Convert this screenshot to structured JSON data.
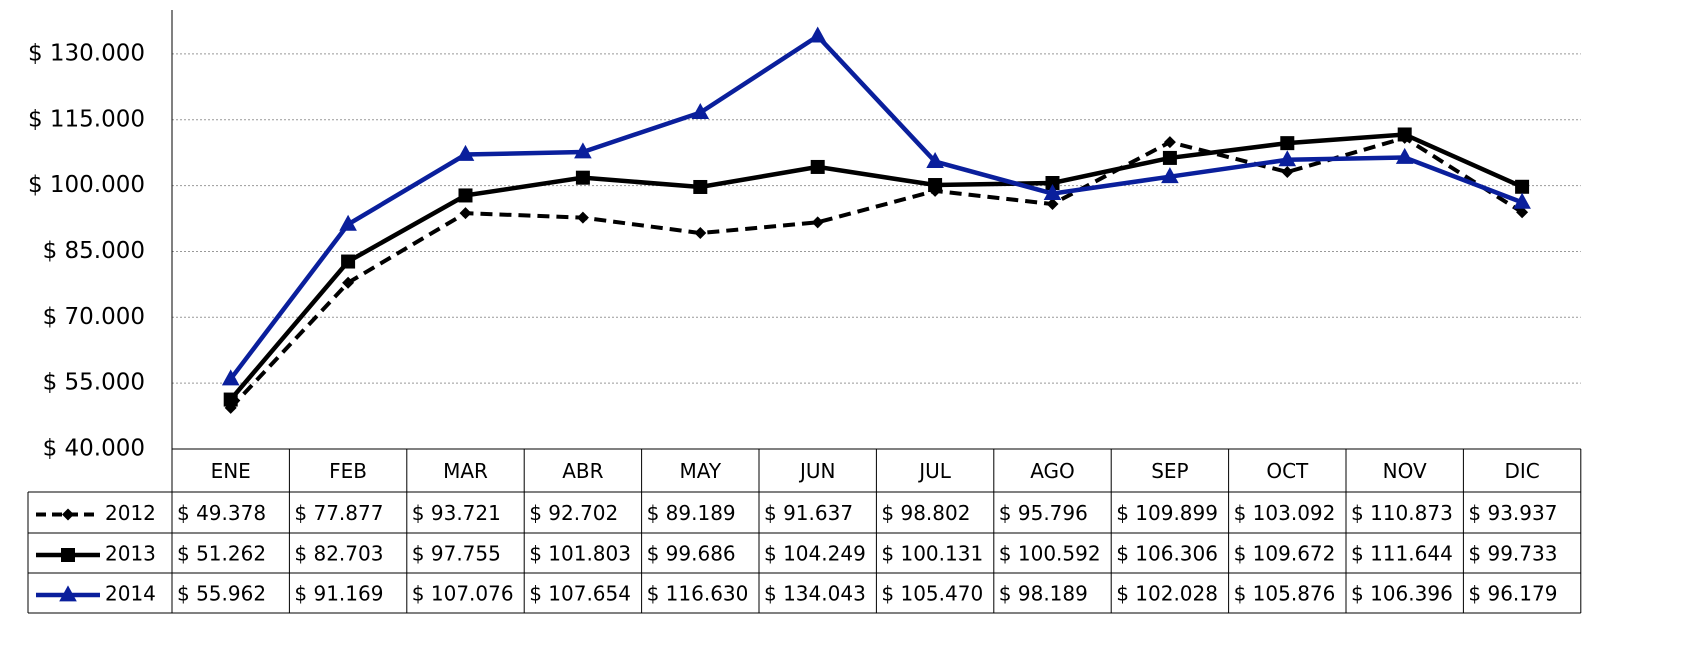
{
  "chart_data": {
    "type": "line",
    "categories": [
      "ENE",
      "FEB",
      "MAR",
      "ABR",
      "MAY",
      "JUN",
      "JUL",
      "AGO",
      "SEP",
      "OCT",
      "NOV",
      "DIC"
    ],
    "series": [
      {
        "name": "2012",
        "color": "#000000",
        "dash": true,
        "marker": "diamond",
        "values": [
          49378,
          77877,
          93721,
          92702,
          89189,
          91637,
          98802,
          95796,
          109899,
          103092,
          110873,
          93937
        ],
        "value_labels": [
          "$ 49.378",
          "$ 77.877",
          "$ 93.721",
          "$ 92.702",
          "$ 89.189",
          "$ 91.637",
          "$ 98.802",
          "$ 95.796",
          "$ 109.899",
          "$ 103.092",
          "$ 110.873",
          "$ 93.937"
        ]
      },
      {
        "name": "2013",
        "color": "#000000",
        "dash": false,
        "marker": "square",
        "values": [
          51262,
          82703,
          97755,
          101803,
          99686,
          104249,
          100131,
          100592,
          106306,
          109672,
          111644,
          99733
        ],
        "value_labels": [
          "$ 51.262",
          "$ 82.703",
          "$ 97.755",
          "$ 101.803",
          "$ 99.686",
          "$ 104.249",
          "$ 100.131",
          "$ 100.592",
          "$ 106.306",
          "$ 109.672",
          "$ 111.644",
          "$ 99.733"
        ]
      },
      {
        "name": "2014",
        "color": "#0a1f9c",
        "dash": false,
        "marker": "triangle",
        "values": [
          55962,
          91169,
          107076,
          107654,
          116630,
          134043,
          105470,
          98189,
          102028,
          105876,
          106396,
          96179
        ],
        "value_labels": [
          "$ 55.962",
          "$ 91.169",
          "$ 107.076",
          "$ 107.654",
          "$ 116.630",
          "$ 134.043",
          "$ 105.470",
          "$ 98.189",
          "$ 102.028",
          "$ 105.876",
          "$ 106.396",
          "$ 96.179"
        ]
      }
    ],
    "ylim": [
      40000,
      140000
    ],
    "yticks": [
      {
        "value": 40000,
        "label": "$ 40.000"
      },
      {
        "value": 55000,
        "label": "$ 55.000"
      },
      {
        "value": 70000,
        "label": "$ 70.000"
      },
      {
        "value": 85000,
        "label": "$ 85.000"
      },
      {
        "value": 100000,
        "label": "$ 100.000"
      },
      {
        "value": 115000,
        "label": "$ 115.000"
      },
      {
        "value": 130000,
        "label": "$ 130.000"
      }
    ],
    "grid": true
  }
}
